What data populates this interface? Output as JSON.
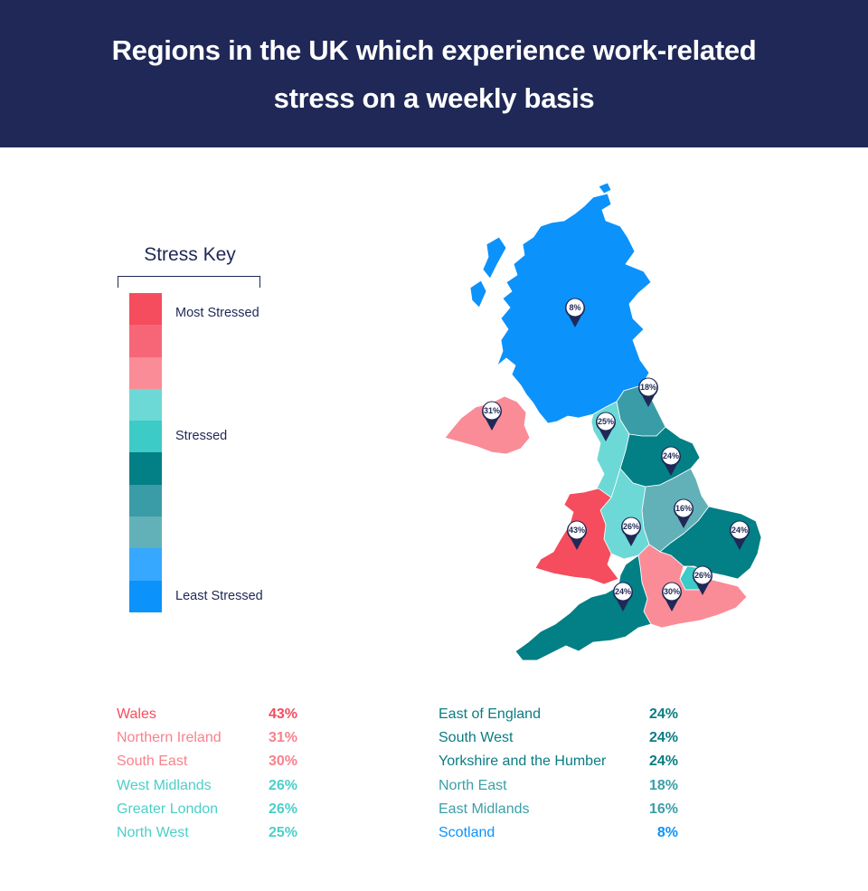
{
  "header": {
    "title": "Regions in the UK which experience work-related stress on a weekly basis"
  },
  "key": {
    "title": "Stress Key",
    "labels": {
      "most": "Most Stressed",
      "mid": "Stressed",
      "least": "Least Stressed"
    },
    "colors": [
      "#f54c5e",
      "#f76677",
      "#fa8c97",
      "#6cd9d6",
      "#3ccbc6",
      "#037f86",
      "#3a9ca6",
      "#62b1b9",
      "#36a8ff",
      "#0c92fb"
    ]
  },
  "regions": [
    {
      "name": "Wales",
      "value": "43%",
      "color": "#f54c5e"
    },
    {
      "name": "Northern Ireland",
      "value": "31%",
      "color": "#f7828c"
    },
    {
      "name": "South East",
      "value": "30%",
      "color": "#f7828c"
    },
    {
      "name": "West Midlands",
      "value": "26%",
      "color": "#4ccfc9"
    },
    {
      "name": "Greater London",
      "value": "26%",
      "color": "#4ccfc9"
    },
    {
      "name": "North West",
      "value": "25%",
      "color": "#4ccfc9"
    },
    {
      "name": "East of England",
      "value": "24%",
      "color": "#0a7c83"
    },
    {
      "name": "South West",
      "value": "24%",
      "color": "#0a7c83"
    },
    {
      "name": "Yorkshire and the Humber",
      "value": "24%",
      "color": "#0a7c83"
    },
    {
      "name": "North East",
      "value": "18%",
      "color": "#3aa0a8"
    },
    {
      "name": "East Midlands",
      "value": "16%",
      "color": "#3aa0a8"
    },
    {
      "name": "Scotland",
      "value": "8%",
      "color": "#0c92fb"
    }
  ],
  "map": {
    "region_colors": {
      "scotland": "#0c92fb",
      "northern_ireland": "#fa8c97",
      "north_east": "#3a9ca6",
      "north_west": "#6cd9d6",
      "yorkshire": "#037f86",
      "east_midlands": "#62b1b9",
      "west_midlands": "#6cd9d6",
      "wales": "#f54c5e",
      "east_of_england": "#037f86",
      "greater_london": "#3ccbc6",
      "south_east": "#fa8c97",
      "south_west": "#037f86"
    },
    "pins": [
      {
        "id": "scotland",
        "label": "8%"
      },
      {
        "id": "northern_ireland",
        "label": "31%"
      },
      {
        "id": "north_east",
        "label": "18%"
      },
      {
        "id": "north_west",
        "label": "25%"
      },
      {
        "id": "yorkshire",
        "label": "24%"
      },
      {
        "id": "east_midlands",
        "label": "16%"
      },
      {
        "id": "wales",
        "label": "43%"
      },
      {
        "id": "west_midlands",
        "label": "26%"
      },
      {
        "id": "east_of_england",
        "label": "24%"
      },
      {
        "id": "greater_london",
        "label": "26%"
      },
      {
        "id": "south_west",
        "label": "24%"
      },
      {
        "id": "south_east",
        "label": "30%"
      }
    ]
  }
}
